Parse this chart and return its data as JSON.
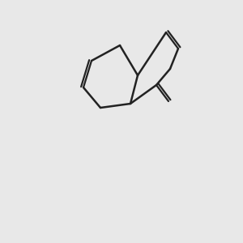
{
  "bg_color": "#e8e8e8",
  "atom_color_C": "#1a1a1a",
  "atom_color_N": "#2020cc",
  "atom_color_O": "#cc2020",
  "atom_color_H": "#888888",
  "bond_color": "#2a2a2a",
  "bond_width": 1.8,
  "fig_size": [
    3.0,
    3.0
  ],
  "dpi": 100
}
